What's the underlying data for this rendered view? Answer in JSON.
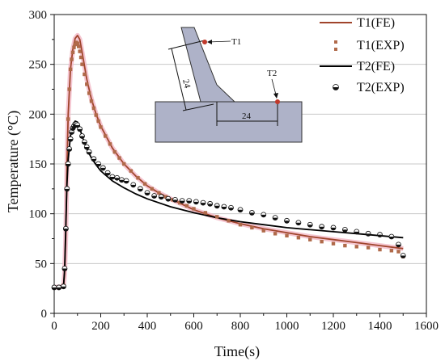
{
  "chart_data": {
    "type": "line",
    "xlabel": "Time(s)",
    "ylabel": "Temperature (°C)",
    "xlim": [
      0,
      1600
    ],
    "ylim": [
      0,
      300
    ],
    "xticks": [
      0,
      200,
      400,
      600,
      800,
      1000,
      1200,
      1400,
      1600
    ],
    "yticks": [
      0,
      50,
      100,
      150,
      200,
      250,
      300
    ],
    "grid": "horizontal",
    "legend_position": "top-right",
    "colors": {
      "t1": "#a0442c",
      "t1_band": "#f2b8c6",
      "t2": "#000000",
      "t1_exp": "#b06a4a"
    },
    "series": [
      {
        "name": "T1(FE)",
        "style": "line",
        "x": [
          0,
          40,
          45,
          50,
          55,
          60,
          70,
          80,
          90,
          100,
          110,
          120,
          140,
          160,
          180,
          200,
          250,
          300,
          350,
          400,
          450,
          500,
          600,
          700,
          800,
          900,
          1000,
          1100,
          1200,
          1300,
          1400,
          1500
        ],
        "y": [
          26,
          27,
          40,
          80,
          150,
          200,
          245,
          265,
          276,
          279,
          275,
          262,
          235,
          215,
          200,
          188,
          166,
          150,
          138,
          128,
          121,
          115,
          104,
          96,
          90,
          85,
          81,
          77,
          74,
          71,
          68,
          65
        ]
      },
      {
        "name": "T1(EXP)",
        "style": "marker",
        "x": [
          0,
          20,
          40,
          45,
          50,
          55,
          60,
          65,
          70,
          75,
          80,
          85,
          90,
          95,
          100,
          105,
          110,
          115,
          120,
          130,
          140,
          150,
          160,
          170,
          180,
          190,
          200,
          220,
          240,
          260,
          280,
          300,
          330,
          360,
          390,
          420,
          450,
          480,
          510,
          540,
          570,
          600,
          650,
          700,
          750,
          800,
          850,
          900,
          950,
          1000,
          1050,
          1100,
          1150,
          1200,
          1250,
          1300,
          1350,
          1400,
          1450,
          1480,
          1500
        ],
        "y": [
          26,
          26,
          28,
          45,
          85,
          150,
          195,
          225,
          245,
          255,
          262,
          267,
          270,
          272,
          271,
          268,
          263,
          257,
          250,
          240,
          230,
          221,
          213,
          206,
          199,
          193,
          187,
          178,
          170,
          162,
          156,
          150,
          143,
          136,
          130,
          125,
          121,
          117,
          114,
          111,
          108,
          105,
          101,
          97,
          93,
          89,
          86,
          83,
          80,
          78,
          76,
          74,
          72,
          70,
          68,
          67,
          66,
          64,
          63,
          62,
          57
        ]
      },
      {
        "name": "T2(FE)",
        "style": "line",
        "x": [
          0,
          40,
          45,
          50,
          55,
          60,
          70,
          80,
          90,
          100,
          110,
          120,
          140,
          160,
          180,
          200,
          250,
          300,
          350,
          400,
          500,
          600,
          700,
          800,
          900,
          1000,
          1100,
          1200,
          1300,
          1400,
          1500
        ],
        "y": [
          26,
          27,
          45,
          90,
          130,
          155,
          178,
          189,
          193,
          192,
          186,
          178,
          165,
          156,
          149,
          143,
          133,
          126,
          120,
          115,
          107,
          101,
          96,
          92,
          89,
          86,
          84,
          82,
          80,
          78,
          76
        ]
      },
      {
        "name": "T2(EXP)",
        "style": "marker",
        "x": [
          0,
          20,
          40,
          45,
          50,
          55,
          60,
          65,
          70,
          75,
          80,
          85,
          90,
          95,
          100,
          110,
          120,
          130,
          140,
          150,
          170,
          190,
          210,
          230,
          250,
          270,
          290,
          310,
          340,
          370,
          400,
          430,
          460,
          490,
          520,
          550,
          580,
          610,
          640,
          670,
          700,
          730,
          760,
          800,
          850,
          900,
          950,
          1000,
          1050,
          1100,
          1150,
          1200,
          1250,
          1300,
          1350,
          1400,
          1450,
          1480,
          1500
        ],
        "y": [
          26,
          26,
          27,
          45,
          85,
          125,
          150,
          165,
          175,
          182,
          186,
          188,
          190,
          190,
          189,
          185,
          178,
          172,
          167,
          162,
          155,
          150,
          146,
          141,
          137,
          136,
          134,
          133,
          129,
          125,
          121,
          118,
          117,
          115,
          114,
          113,
          113,
          112,
          111,
          110,
          108,
          107,
          106,
          104,
          101,
          99,
          96,
          93,
          91,
          89,
          87,
          86,
          84,
          82,
          80,
          79,
          77,
          69,
          58
        ]
      }
    ],
    "inset": {
      "labels": {
        "t1": "T1",
        "t2": "T2",
        "dim1": "24",
        "dim2": "24"
      }
    }
  }
}
